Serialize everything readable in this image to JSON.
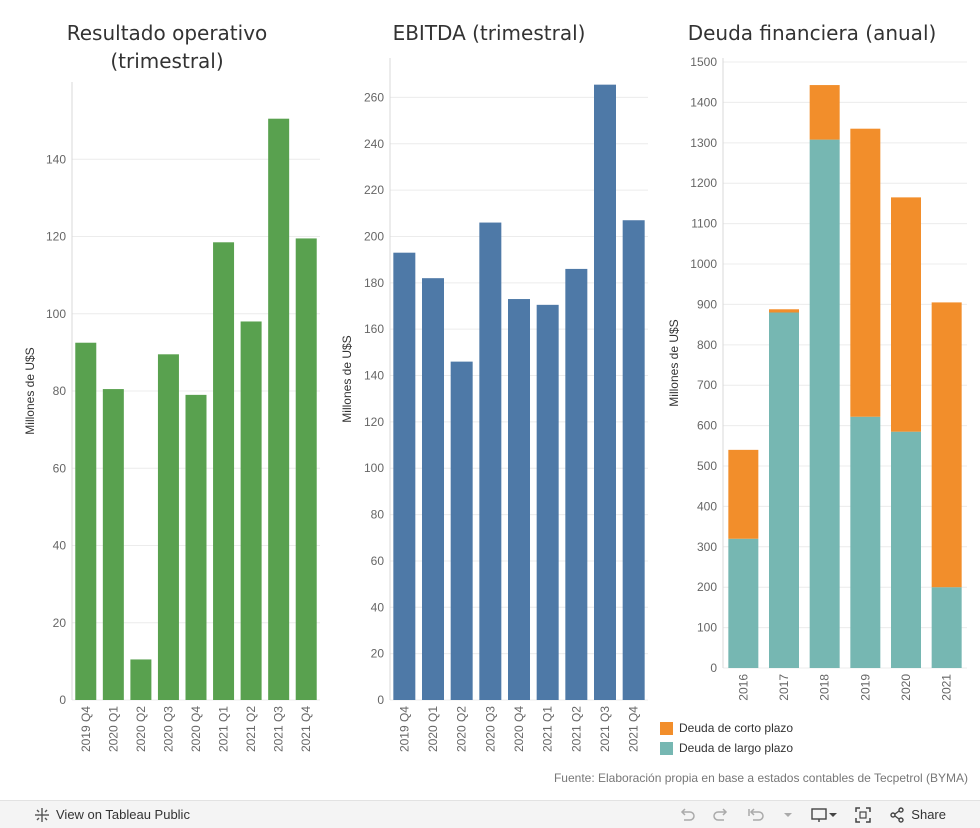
{
  "colors": {
    "green": "#59a14f",
    "blue": "#4e79a7",
    "orange": "#f28e2b",
    "teal": "#76b7b2"
  },
  "chart_data": [
    {
      "type": "bar",
      "title_lines": [
        "Resultado operativo",
        "(trimestral)"
      ],
      "ylabel": "Millones de U$S",
      "categories": [
        "2019 Q4",
        "2020 Q1",
        "2020 Q2",
        "2020 Q3",
        "2020 Q4",
        "2021 Q1",
        "2021 Q2",
        "2021 Q3",
        "2021 Q4"
      ],
      "values": [
        92.5,
        80.5,
        10.5,
        89.5,
        79,
        118.5,
        98,
        150.5,
        119.5
      ],
      "ylim": [
        0,
        160
      ],
      "yticks": [
        0,
        20,
        40,
        60,
        80,
        100,
        120,
        140
      ],
      "color": "#59a14f"
    },
    {
      "type": "bar",
      "title_lines": [
        "EBITDA (trimestral)"
      ],
      "ylabel": "Millones de U$S",
      "categories": [
        "2019 Q4",
        "2020 Q1",
        "2020 Q2",
        "2020 Q3",
        "2020 Q4",
        "2021 Q1",
        "2021 Q2",
        "2021 Q3",
        "2021 Q4"
      ],
      "values": [
        193,
        182,
        146,
        206,
        173,
        170.5,
        186,
        265.5,
        207
      ],
      "ylim": [
        0,
        277
      ],
      "yticks": [
        0,
        20,
        40,
        60,
        80,
        100,
        120,
        140,
        160,
        180,
        200,
        220,
        240,
        260
      ],
      "color": "#4e79a7"
    },
    {
      "type": "stacked-bar",
      "title_lines": [
        "Deuda financiera (anual)"
      ],
      "ylabel": "Millones de U$S",
      "categories": [
        "2016",
        "2017",
        "2018",
        "2019",
        "2020",
        "2021"
      ],
      "series": [
        {
          "name": "Deuda de largo plazo",
          "color": "#76b7b2",
          "values": [
            320,
            880,
            1308,
            622,
            585,
            200
          ]
        },
        {
          "name": "Deuda de corto plazo",
          "color": "#f28e2b",
          "values": [
            220,
            8,
            135,
            713,
            580,
            705
          ]
        }
      ],
      "ylim": [
        0,
        1510
      ],
      "yticks": [
        0,
        100,
        200,
        300,
        400,
        500,
        600,
        700,
        800,
        900,
        1000,
        1100,
        1200,
        1300,
        1400,
        1500
      ]
    }
  ],
  "legend": [
    {
      "label": "Deuda de corto plazo",
      "color": "#f28e2b"
    },
    {
      "label": "Deuda de largo plazo",
      "color": "#76b7b2"
    }
  ],
  "source": "Fuente: Elaboración propia en base a estados contables de Tecpetrol (BYMA)",
  "toolbar": {
    "view_label": "View on Tableau Public",
    "share_label": "Share"
  }
}
